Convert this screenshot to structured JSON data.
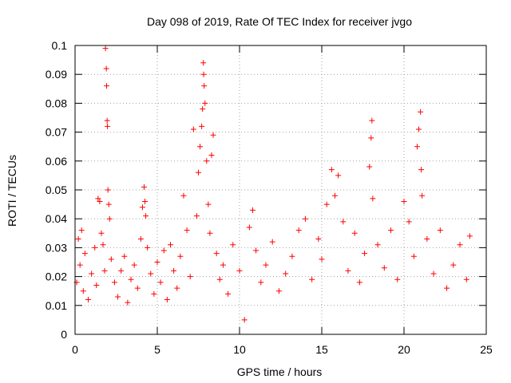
{
  "chart_data": {
    "type": "scatter",
    "title": "Day 098 of 2019, Rate Of TEC Index for receiver jvgo",
    "xlabel": "GPS time / hours",
    "ylabel": "ROTI / TECUs",
    "xlim": [
      0,
      25
    ],
    "ylim": [
      0,
      0.1
    ],
    "xticks": [
      0,
      5,
      10,
      15,
      20,
      25
    ],
    "yticks": [
      0,
      0.01,
      0.02,
      0.03,
      0.04,
      0.05,
      0.06,
      0.07,
      0.08,
      0.09,
      0.1
    ],
    "xtick_labels": [
      "0",
      "5",
      "10",
      "15",
      "20",
      "25"
    ],
    "ytick_labels": [
      "0",
      "0.01",
      "0.02",
      "0.03",
      "0.04",
      "0.05",
      "0.06",
      "0.07",
      "0.08",
      "0.09",
      "0.1"
    ],
    "grid": true,
    "marker": "+",
    "color": "#ff0000",
    "series": [
      {
        "points": [
          [
            0.1,
            0.018
          ],
          [
            0.2,
            0.033
          ],
          [
            0.3,
            0.024
          ],
          [
            0.4,
            0.036
          ],
          [
            0.5,
            0.015
          ],
          [
            0.6,
            0.028
          ],
          [
            0.8,
            0.012
          ],
          [
            1.0,
            0.021
          ],
          [
            1.2,
            0.03
          ],
          [
            1.3,
            0.017
          ],
          [
            1.4,
            0.047
          ],
          [
            1.5,
            0.046
          ],
          [
            1.6,
            0.035
          ],
          [
            1.7,
            0.031
          ],
          [
            1.8,
            0.022
          ],
          [
            1.85,
            0.099
          ],
          [
            1.9,
            0.092
          ],
          [
            1.92,
            0.086
          ],
          [
            1.95,
            0.074
          ],
          [
            1.97,
            0.072
          ],
          [
            2.0,
            0.05
          ],
          [
            2.05,
            0.045
          ],
          [
            2.1,
            0.04
          ],
          [
            2.2,
            0.026
          ],
          [
            2.4,
            0.018
          ],
          [
            2.6,
            0.013
          ],
          [
            2.8,
            0.022
          ],
          [
            3.0,
            0.027
          ],
          [
            3.2,
            0.011
          ],
          [
            3.4,
            0.019
          ],
          [
            3.6,
            0.024
          ],
          [
            3.8,
            0.016
          ],
          [
            4.0,
            0.033
          ],
          [
            4.1,
            0.044
          ],
          [
            4.2,
            0.051
          ],
          [
            4.25,
            0.046
          ],
          [
            4.3,
            0.041
          ],
          [
            4.4,
            0.03
          ],
          [
            4.6,
            0.021
          ],
          [
            4.8,
            0.014
          ],
          [
            5.0,
            0.025
          ],
          [
            5.2,
            0.018
          ],
          [
            5.4,
            0.029
          ],
          [
            5.6,
            0.012
          ],
          [
            5.8,
            0.031
          ],
          [
            6.0,
            0.022
          ],
          [
            6.2,
            0.016
          ],
          [
            6.4,
            0.027
          ],
          [
            6.6,
            0.048
          ],
          [
            6.8,
            0.036
          ],
          [
            7.0,
            0.02
          ],
          [
            7.2,
            0.071
          ],
          [
            7.4,
            0.041
          ],
          [
            7.5,
            0.056
          ],
          [
            7.6,
            0.065
          ],
          [
            7.7,
            0.072
          ],
          [
            7.75,
            0.078
          ],
          [
            7.8,
            0.094
          ],
          [
            7.82,
            0.09
          ],
          [
            7.85,
            0.086
          ],
          [
            7.9,
            0.08
          ],
          [
            8.0,
            0.06
          ],
          [
            8.1,
            0.045
          ],
          [
            8.2,
            0.035
          ],
          [
            8.3,
            0.062
          ],
          [
            8.4,
            0.069
          ],
          [
            8.6,
            0.028
          ],
          [
            8.8,
            0.019
          ],
          [
            9.0,
            0.024
          ],
          [
            9.3,
            0.014
          ],
          [
            9.6,
            0.031
          ],
          [
            10.0,
            0.022
          ],
          [
            10.3,
            0.005
          ],
          [
            10.6,
            0.037
          ],
          [
            10.8,
            0.043
          ],
          [
            11.0,
            0.029
          ],
          [
            11.3,
            0.018
          ],
          [
            11.6,
            0.024
          ],
          [
            12.0,
            0.032
          ],
          [
            12.4,
            0.015
          ],
          [
            12.8,
            0.021
          ],
          [
            13.2,
            0.027
          ],
          [
            13.6,
            0.036
          ],
          [
            14.0,
            0.04
          ],
          [
            14.4,
            0.019
          ],
          [
            14.8,
            0.033
          ],
          [
            15.0,
            0.026
          ],
          [
            15.3,
            0.045
          ],
          [
            15.6,
            0.057
          ],
          [
            15.8,
            0.048
          ],
          [
            16.0,
            0.055
          ],
          [
            16.3,
            0.039
          ],
          [
            16.6,
            0.022
          ],
          [
            17.0,
            0.035
          ],
          [
            17.3,
            0.018
          ],
          [
            17.6,
            0.028
          ],
          [
            17.9,
            0.058
          ],
          [
            18.0,
            0.068
          ],
          [
            18.05,
            0.074
          ],
          [
            18.1,
            0.047
          ],
          [
            18.4,
            0.031
          ],
          [
            18.8,
            0.023
          ],
          [
            19.2,
            0.036
          ],
          [
            19.6,
            0.019
          ],
          [
            20.0,
            0.046
          ],
          [
            20.3,
            0.039
          ],
          [
            20.6,
            0.027
          ],
          [
            20.8,
            0.065
          ],
          [
            20.9,
            0.071
          ],
          [
            21.0,
            0.077
          ],
          [
            21.05,
            0.057
          ],
          [
            21.1,
            0.048
          ],
          [
            21.4,
            0.033
          ],
          [
            21.8,
            0.021
          ],
          [
            22.2,
            0.036
          ],
          [
            22.6,
            0.016
          ],
          [
            23.0,
            0.024
          ],
          [
            23.4,
            0.031
          ],
          [
            23.8,
            0.019
          ],
          [
            24.0,
            0.034
          ]
        ]
      }
    ]
  }
}
